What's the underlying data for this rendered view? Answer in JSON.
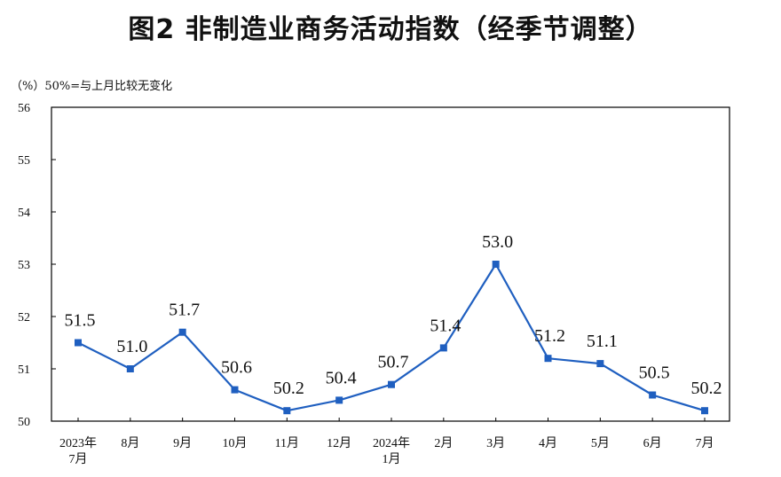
{
  "header": {
    "title": "图2  非制造业商务活动指数（经季节调整）"
  },
  "note": {
    "unit": "（%）",
    "text": "50%=与上月比较无变化"
  },
  "chart_data": {
    "type": "line",
    "title": "图2  非制造业商务活动指数（经季节调整）",
    "xlabel": "",
    "ylabel": "（%）",
    "categories": [
      [
        "2023年",
        "7月"
      ],
      [
        "8月"
      ],
      [
        "9月"
      ],
      [
        "10月"
      ],
      [
        "11月"
      ],
      [
        "12月"
      ],
      [
        "2024年",
        "1月"
      ],
      [
        "2月"
      ],
      [
        "3月"
      ],
      [
        "4月"
      ],
      [
        "5月"
      ],
      [
        "6月"
      ],
      [
        "7月"
      ]
    ],
    "series": [
      {
        "values": [
          51.5,
          51.0,
          51.7,
          50.6,
          50.2,
          50.4,
          50.7,
          51.4,
          53.0,
          51.2,
          51.1,
          50.5,
          50.2
        ],
        "labels": [
          "51.5",
          "51.0",
          "51.7",
          "50.6",
          "50.2",
          "50.4",
          "50.7",
          "51.4",
          "53.0",
          "51.2",
          "51.1",
          "50.5",
          "50.2"
        ],
        "color": "#1f5fc0"
      }
    ],
    "ylim": [
      50,
      56
    ],
    "yticks": [
      "50",
      "51",
      "52",
      "53",
      "54",
      "55",
      "56"
    ],
    "grid": false,
    "legend": "none"
  }
}
